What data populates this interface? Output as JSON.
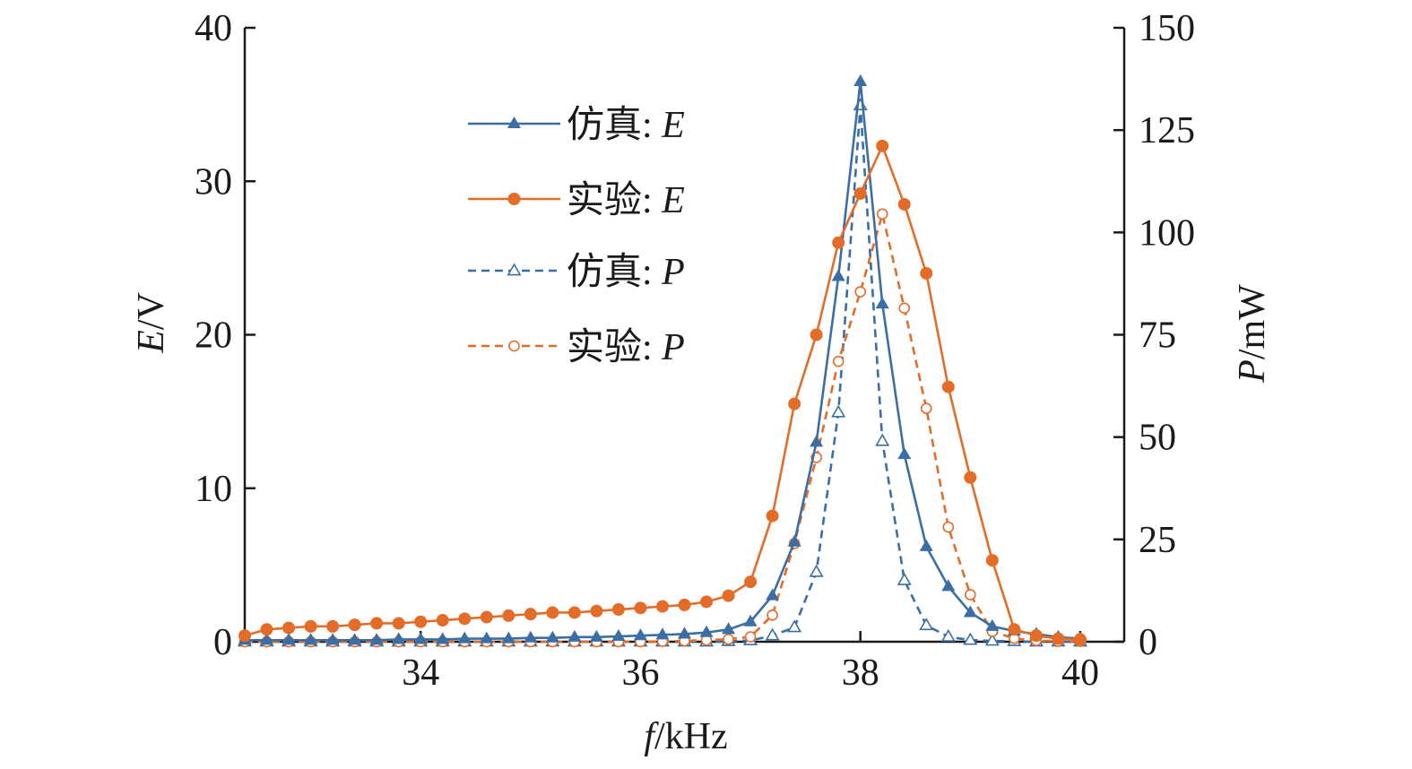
{
  "chart_data": {
    "type": "line",
    "xlabel_var": "f",
    "xlabel_unit": "/kHz",
    "ylabel_left_var": "E",
    "ylabel_left_unit": "/V",
    "ylabel_right_var": "P",
    "ylabel_right_unit": "/mW",
    "xlim": [
      32.4,
      40.4
    ],
    "ylim_left": [
      0,
      40
    ],
    "ylim_right": [
      0,
      150
    ],
    "x_ticks": [
      34,
      36,
      38,
      40
    ],
    "y_left_ticks": [
      0,
      10,
      20,
      30,
      40
    ],
    "y_right_ticks": [
      0,
      25,
      50,
      75,
      100,
      125,
      150
    ],
    "legend_position": "upper-left-center",
    "series": [
      {
        "name": "仿真: E",
        "label_prefix": "仿真: ",
        "label_var": "E",
        "axis": "left",
        "color": "#3a6ea5",
        "dash": "solid",
        "marker": "triangle",
        "filled": true,
        "x": [
          32.4,
          32.6,
          32.8,
          33.0,
          33.2,
          33.4,
          33.6,
          33.8,
          34.0,
          34.2,
          34.4,
          34.6,
          34.8,
          35.0,
          35.2,
          35.4,
          35.6,
          35.8,
          36.0,
          36.2,
          36.4,
          36.6,
          36.8,
          37.0,
          37.2,
          37.4,
          37.6,
          37.8,
          38.0,
          38.2,
          38.4,
          38.6,
          38.8,
          39.0,
          39.2,
          39.4,
          39.6,
          39.8,
          40.0
        ],
        "y": [
          0.1,
          0.1,
          0.1,
          0.1,
          0.1,
          0.1,
          0.1,
          0.15,
          0.15,
          0.15,
          0.2,
          0.2,
          0.2,
          0.25,
          0.25,
          0.3,
          0.3,
          0.35,
          0.4,
          0.45,
          0.5,
          0.6,
          0.8,
          1.3,
          3.0,
          6.5,
          13.0,
          23.8,
          36.5,
          22.0,
          12.2,
          6.2,
          3.6,
          1.9,
          1.0,
          0.7,
          0.5,
          0.3,
          0.2
        ]
      },
      {
        "name": "实验: E",
        "label_prefix": "实验: ",
        "label_var": "E",
        "axis": "left",
        "color": "#e46c29",
        "dash": "solid",
        "marker": "circle",
        "filled": true,
        "x": [
          32.4,
          32.6,
          32.8,
          33.0,
          33.2,
          33.4,
          33.6,
          33.8,
          34.0,
          34.2,
          34.4,
          34.6,
          34.8,
          35.0,
          35.2,
          35.4,
          35.6,
          35.8,
          36.0,
          36.2,
          36.4,
          36.6,
          36.8,
          37.0,
          37.2,
          37.4,
          37.6,
          37.8,
          38.0,
          38.2,
          38.4,
          38.6,
          38.8,
          39.0,
          39.2,
          39.4,
          39.6,
          39.8,
          40.0
        ],
        "y": [
          0.4,
          0.8,
          0.9,
          1.0,
          1.0,
          1.1,
          1.2,
          1.2,
          1.3,
          1.4,
          1.5,
          1.6,
          1.7,
          1.8,
          1.9,
          1.9,
          2.0,
          2.1,
          2.2,
          2.3,
          2.4,
          2.6,
          3.0,
          3.9,
          8.2,
          15.5,
          20.0,
          26.0,
          29.2,
          32.3,
          28.5,
          24.0,
          16.6,
          10.7,
          5.3,
          0.8,
          0.4,
          0.2,
          0.15
        ]
      },
      {
        "name": "仿真: P",
        "label_prefix": "仿真: ",
        "label_var": "P",
        "axis": "right",
        "color": "#3a6ea5",
        "dash": "dashed",
        "marker": "triangle",
        "filled": false,
        "x": [
          32.4,
          32.6,
          32.8,
          33.0,
          33.2,
          33.4,
          33.6,
          33.8,
          34.0,
          34.2,
          34.4,
          34.6,
          34.8,
          35.0,
          35.2,
          35.4,
          35.6,
          35.8,
          36.0,
          36.2,
          36.4,
          36.6,
          36.8,
          37.0,
          37.2,
          37.4,
          37.6,
          37.8,
          38.0,
          38.2,
          38.4,
          38.6,
          38.8,
          39.0,
          39.2,
          39.4,
          39.6,
          39.8,
          40.0
        ],
        "y": [
          0,
          0,
          0,
          0,
          0,
          0,
          0,
          0,
          0,
          0,
          0,
          0,
          0,
          0,
          0,
          0,
          0,
          0,
          0,
          0,
          0,
          0,
          0.1,
          0.3,
          1.5,
          3.5,
          17.0,
          56.0,
          131.0,
          49.0,
          15.0,
          4.0,
          1.2,
          0.4,
          0.2,
          0.1,
          0,
          0,
          0
        ]
      },
      {
        "name": "实验: P",
        "label_prefix": "实验: ",
        "label_var": "P",
        "axis": "right",
        "color": "#e46c29",
        "dash": "dashed",
        "marker": "circle",
        "filled": false,
        "x": [
          32.4,
          32.6,
          32.8,
          33.0,
          33.2,
          33.4,
          33.6,
          33.8,
          34.0,
          34.2,
          34.4,
          34.6,
          34.8,
          35.0,
          35.2,
          35.4,
          35.6,
          35.8,
          36.0,
          36.2,
          36.4,
          36.6,
          36.8,
          37.0,
          37.2,
          37.4,
          37.6,
          37.8,
          38.0,
          38.2,
          38.4,
          38.6,
          38.8,
          39.0,
          39.2,
          39.4,
          39.6,
          39.8,
          40.0
        ],
        "y": [
          0,
          0,
          0,
          0,
          0,
          0,
          0,
          0,
          0,
          0,
          0,
          0,
          0,
          0,
          0,
          0,
          0,
          0,
          0,
          0.1,
          0.2,
          0.4,
          0.6,
          1.2,
          6.5,
          24.0,
          45.0,
          68.5,
          85.5,
          104.5,
          81.5,
          57.0,
          28.0,
          11.5,
          2.5,
          0.8,
          0.3,
          0.1,
          0.1
        ]
      }
    ]
  }
}
